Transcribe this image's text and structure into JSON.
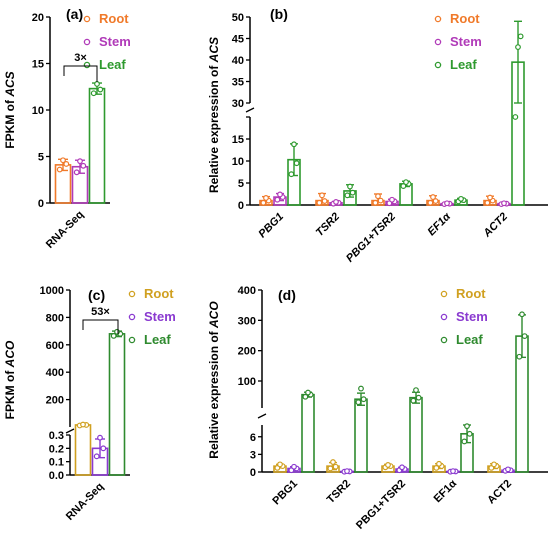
{
  "colors": {
    "Root": "#f07a2a",
    "Stem": "#b03ab8",
    "Leaf": "#2e9a2e",
    "Root_d": "#d0a020",
    "Stem_d": "#8a3ad0",
    "Leaf_d": "#2e8a2e"
  },
  "chart_data": [
    {
      "panel": "(a)",
      "type": "bar",
      "ylabel_pre": "FPKM of ",
      "ylabel_gene": "ACS",
      "categories": [
        "RNA-Seq"
      ],
      "series": [
        {
          "name": "Root",
          "values": [
            4.1
          ],
          "errors": [
            0.6
          ],
          "points": [
            [
              3.6,
              4.2,
              4.6
            ]
          ]
        },
        {
          "name": "Stem",
          "values": [
            3.9
          ],
          "errors": [
            0.7
          ],
          "points": [
            [
              3.3,
              4.0,
              4.5
            ]
          ]
        },
        {
          "name": "Leaf",
          "values": [
            12.3
          ],
          "errors": [
            0.6
          ],
          "points": [
            [
              11.8,
              12.2,
              12.8
            ]
          ]
        }
      ],
      "ylim": [
        0,
        20
      ],
      "yticks": [
        0,
        5,
        10,
        15,
        20
      ],
      "annotation": "3×",
      "legend": "top-right"
    },
    {
      "panel": "(b)",
      "type": "bar",
      "ylabel_pre": "Relative expression of ",
      "ylabel_gene": "ACS",
      "categories": [
        "PBG1",
        "TSR2",
        "PBG1+TSR2",
        "EF1α",
        "ACT2"
      ],
      "series": [
        {
          "name": "Root",
          "values": [
            1.0,
            1.0,
            1.0,
            1.0,
            1.0
          ],
          "errors": [
            0.9,
            1.6,
            1.5,
            1.1,
            1.0
          ],
          "points": [
            [
              0.5,
              1.0,
              1.6
            ],
            [
              0.5,
              0.9,
              2.2
            ],
            [
              0.5,
              1.0,
              2.0
            ],
            [
              0.5,
              0.9,
              1.8
            ],
            [
              0.5,
              1.0,
              1.7
            ]
          ]
        },
        {
          "name": "Stem",
          "values": [
            1.8,
            0.5,
            0.8,
            0.3,
            0.3
          ],
          "errors": [
            0.8,
            0.3,
            0.5,
            0.2,
            0.2
          ],
          "points": [
            [
              1.2,
              1.8,
              2.4
            ],
            [
              0.3,
              0.5,
              0.7
            ],
            [
              0.4,
              0.8,
              1.2
            ],
            [
              0.2,
              0.3,
              0.4
            ],
            [
              0.2,
              0.3,
              0.4
            ]
          ]
        },
        {
          "name": "Leaf",
          "values": [
            10.3,
            3.2,
            4.8,
            1.1,
            39.5
          ],
          "errors": [
            3.6,
            1.4,
            0.6,
            0.4,
            9.5
          ],
          "points": [
            [
              7.0,
              9.5,
              13.8
            ],
            [
              2.2,
              2.8,
              4.2
            ],
            [
              4.3,
              4.8,
              5.2
            ],
            [
              0.8,
              1.1,
              1.4
            ],
            [
              29.5,
              45.5,
              43.0
            ]
          ]
        }
      ],
      "ylim": [
        0,
        50
      ],
      "axis_break": [
        20,
        30
      ],
      "yticks_lower": [
        0,
        5,
        10,
        15
      ],
      "yticks_upper": [
        30,
        35,
        40,
        45,
        50
      ],
      "legend": "top-right"
    },
    {
      "panel": "(c)",
      "type": "bar",
      "ylabel_pre": "FPKM of ",
      "ylabel_gene": "ACO",
      "categories": [
        "RNA-Seq"
      ],
      "series": [
        {
          "name": "Root",
          "values": [
            15
          ],
          "errors": [
            5
          ],
          "points": [
            [
              11,
              15,
              18
            ]
          ]
        },
        {
          "name": "Stem",
          "values": [
            0.2
          ],
          "errors": [
            0.07
          ],
          "points": [
            [
              0.14,
              0.2,
              0.28
            ]
          ]
        },
        {
          "name": "Leaf",
          "values": [
            680
          ],
          "errors": [
            20
          ],
          "points": [
            [
              665,
              680,
              695
            ]
          ]
        }
      ],
      "ylim": [
        0,
        1000
      ],
      "axis_break": [
        0.3,
        0.3
      ],
      "yticks_lower": [
        0.0,
        0.1,
        0.2,
        0.3
      ],
      "yticks_upper": [
        200,
        400,
        600,
        800,
        1000
      ],
      "annotation": "53×",
      "legend": "top-right"
    },
    {
      "panel": "(d)",
      "type": "bar",
      "ylabel_pre": "Relative expression of ",
      "ylabel_gene": "ACO",
      "categories": [
        "PBG1",
        "TSR2",
        "PBG1+TSR2",
        "EF1α",
        "ACT2"
      ],
      "series": [
        {
          "name": "Root",
          "values": [
            1.0,
            1.0,
            1.0,
            1.0,
            1.0
          ],
          "errors": [
            0.3,
            0.6,
            0.3,
            0.4,
            0.4
          ],
          "points": [
            [
              0.7,
              1.0,
              1.3
            ],
            [
              0.6,
              0.9,
              1.7
            ],
            [
              0.8,
              1.0,
              1.2
            ],
            [
              0.7,
              1.0,
              1.4
            ],
            [
              0.7,
              1.0,
              1.3
            ]
          ]
        },
        {
          "name": "Stem",
          "values": [
            0.6,
            0.1,
            0.5,
            0.1,
            0.3
          ],
          "errors": [
            0.3,
            0.05,
            0.3,
            0.05,
            0.15
          ],
          "points": [
            [
              0.3,
              0.6,
              0.9
            ],
            [
              0.05,
              0.1,
              0.15
            ],
            [
              0.3,
              0.5,
              0.8
            ],
            [
              0.05,
              0.1,
              0.15
            ],
            [
              0.2,
              0.3,
              0.45
            ]
          ]
        },
        {
          "name": "Leaf",
          "values": [
            55,
            40,
            45,
            6.5,
            248
          ],
          "errors": [
            8,
            20,
            18,
            1.5,
            70
          ],
          "points": [
            [
              48,
              55,
              62
            ],
            [
              30,
              40,
              75
            ],
            [
              35,
              45,
              70
            ],
            [
              5.2,
              6.5,
              7.8
            ],
            [
              180,
              248,
              320
            ]
          ]
        }
      ],
      "ylim": [
        0,
        400
      ],
      "axis_break": [
        8,
        20
      ],
      "yticks_lower": [
        0,
        3,
        6
      ],
      "yticks_upper": [
        100,
        200,
        300,
        400
      ],
      "legend": "top-right"
    }
  ]
}
